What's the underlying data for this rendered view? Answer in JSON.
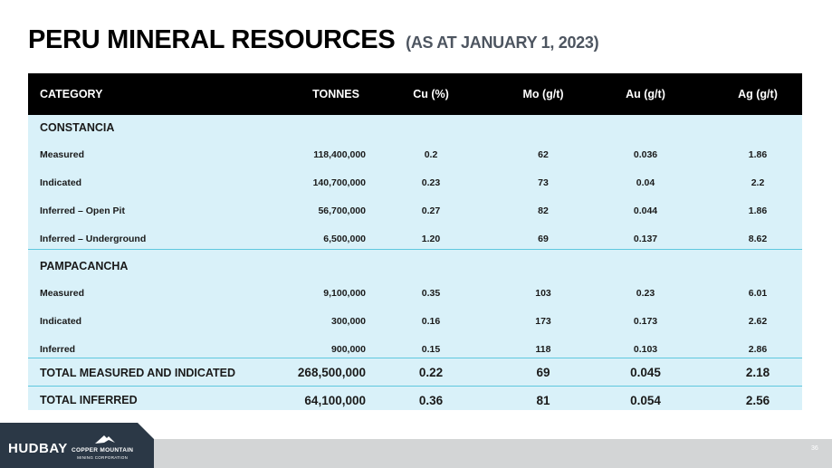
{
  "title": {
    "main": "PERU MINERAL RESOURCES",
    "sub": "(AS AT JANUARY 1, 2023)"
  },
  "table": {
    "headers": [
      "CATEGORY",
      "TONNES",
      "Cu (%)",
      "Mo (g/t)",
      "Au (g/t)",
      "Ag (g/t)"
    ],
    "sections": [
      {
        "name": "CONSTANCIA",
        "rows": [
          [
            "Measured",
            "118,400,000",
            "0.2",
            "62",
            "0.036",
            "1.86"
          ],
          [
            "Indicated",
            "140,700,000",
            "0.23",
            "73",
            "0.04",
            "2.2"
          ],
          [
            "Inferred – Open Pit",
            "56,700,000",
            "0.27",
            "82",
            "0.044",
            "1.86"
          ],
          [
            "Inferred – Underground",
            "6,500,000",
            "1.20",
            "69",
            "0.137",
            "8.62"
          ]
        ]
      },
      {
        "name": "PAMPACANCHA",
        "rows": [
          [
            "Measured",
            "9,100,000",
            "0.35",
            "103",
            "0.23",
            "6.01"
          ],
          [
            "Indicated",
            "300,000",
            "0.16",
            "173",
            "0.173",
            "2.62"
          ],
          [
            "Inferred",
            "900,000",
            "0.15",
            "118",
            "0.103",
            "2.86"
          ]
        ]
      }
    ],
    "totals": [
      [
        "TOTAL MEASURED AND INDICATED",
        "268,500,000",
        "0.22",
        "69",
        "0.045",
        "2.18"
      ],
      [
        "TOTAL INFERRED",
        "64,100,000",
        "0.36",
        "81",
        "0.054",
        "2.56"
      ]
    ]
  },
  "footer": {
    "logo_hudbay": "HUDBAY",
    "logo_cm": "COPPER MOUNTAIN",
    "logo_cm_sub": "MINING CORPORATION",
    "page_number": "36"
  },
  "colors": {
    "header_bg": "#000000",
    "table_bg": "#d9f1f9",
    "divider": "#5fc8df",
    "footer_dark": "#2b3846"
  }
}
